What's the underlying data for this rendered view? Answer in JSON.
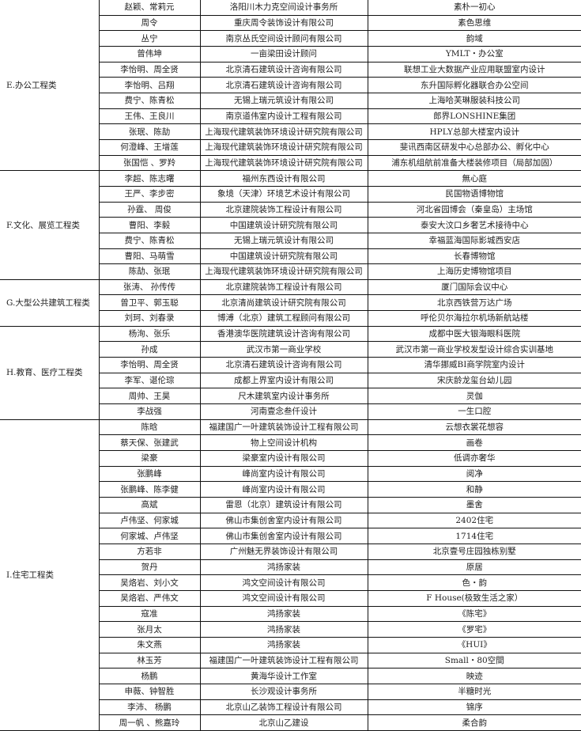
{
  "groups": [
    {
      "category": "E.办公工程类",
      "rows": [
        [
          "赵颖、常莉元",
          "洛阳川木力克空间设计事务所",
          "素朴一初心"
        ],
        [
          "周令",
          "重庆周令装饰设计有限公司",
          "素色思维"
        ],
        [
          "丛宁",
          "南京丛氏空间设计顾问有限公司",
          "韵域"
        ],
        [
          "曾伟坤",
          "一亩梁田设计顾问",
          "YMLT・办公室"
        ],
        [
          "李怡明、周全贤",
          "北京清石建筑设计咨询有限公司",
          "联想工业大数据产业应用联盟室内设计"
        ],
        [
          "李怡明、吕翔",
          "北京清石建筑设计咨询有限公司",
          "东升国际孵化器联合办公空间"
        ],
        [
          "费宁、陈青松",
          "无锡上瑞元筑设计有限公司",
          "上海哈芙琳服装科技公司"
        ],
        [
          "王伟、王良川",
          "南京道伟室内设计工程有限公司",
          "郎界LONSHINE集团"
        ],
        [
          "张珉、陈劼",
          "上海现代建筑装饰环境设计研究院有限公司",
          "HPLY总部大楼室内设计"
        ],
        [
          "何澄峰、王增莲",
          "上海现代建筑装饰环境设计研究院有限公司",
          "斐讯西南区研发中心总部办公、孵化中心"
        ],
        [
          "张国恺 、罗羚",
          "上海现代建筑装饰环境设计研究院有限公司",
          "浦东机组航前准备大楼装修项目（局部加固）"
        ]
      ]
    },
    {
      "category": "F.文化、展览工程类",
      "rows": [
        [
          "李超、陈志曙",
          "福州东西设计有限公司",
          "無心庭"
        ],
        [
          "王严、李步密",
          "象境（天津）环境艺术设计有限公司",
          "民国物语博物馆"
        ],
        [
          "孙霆、 周俊",
          "北京建院装饰工程设计有限公司",
          "河北省园博会（秦皇岛）主场馆"
        ],
        [
          "曹阳、李毅",
          "中国建筑设计研究院有限公司",
          "泰安大汶口乡奢艺术接待中心"
        ],
        [
          "费宁、陈青松",
          "无锡上瑞元筑设计有限公司",
          "幸福蓝海国际影城西安店"
        ],
        [
          "曹阳、马萌雪",
          "中国建筑设计研究院有限公司",
          "长春博物馆"
        ],
        [
          "陈劼、张珉",
          "上海现代建筑装饰环境设计研究院有限公司",
          "上海历史博物馆项目"
        ]
      ]
    },
    {
      "category": "G.大型公共建筑工程类",
      "rows": [
        [
          "张涛、 孙传传",
          "北京建院装饰工程设计有限公司",
          "厦门国际会议中心"
        ],
        [
          "曾卫平、郭玉聪",
          "北京清尚建筑设计研究院有限公司",
          "北京西铁营万达广场"
        ],
        [
          "刘珂、刘春录",
          "博溥（北京）建筑工程顾问有限公司",
          "呼伦贝尔海拉尔机场新航站楼"
        ]
      ]
    },
    {
      "category": "H.教育、医疗工程类",
      "rows": [
        [
          "杨洵、张乐",
          "香港澳华医院建筑设计咨询有限公司",
          "成都中医大银海眼科医院"
        ],
        [
          "孙成",
          "武汉市第一商业学校",
          "武汉市第一商业学校发型设计综合实训基地"
        ],
        [
          "李怡明、周全贤",
          "北京清石建筑设计咨询有限公司",
          "清华挪威BI商学院室内设计"
        ],
        [
          "李军、谌伦琮",
          "成都上界室内设计有限公司",
          "宋庆龄龙玺台幼儿园"
        ],
        [
          "周帅、王昊",
          "尺木建筑室内设计事务所",
          "灵伽"
        ],
        [
          "李战强",
          "河南壹念叁仟设计",
          "一生口腔"
        ]
      ]
    },
    {
      "category": "I.住宅工程类",
      "rows": [
        [
          "陈晗",
          "福建国广一叶建筑装饰设计工程有限公司",
          "云想衣裳花想容"
        ],
        [
          "蔡天保、张建武",
          "物上空间设计机构",
          "画卷"
        ],
        [
          "梁豪",
          "梁豪室内设计有限公司",
          "低调亦奢华"
        ],
        [
          "张鹏峰",
          "峰尚室内设计有限公司",
          "阅净"
        ],
        [
          "张鹏峰、陈李健",
          "峰尚室内设计有限公司",
          "和静"
        ],
        [
          "高斌",
          "雷恩（北京）建筑设计有限公司",
          "墨舍"
        ],
        [
          "卢伟坚、何家城",
          "佛山市集创舍室内设计有限公司",
          "2402住宅"
        ],
        [
          "何家城、卢伟坚",
          "佛山市集创舍室内设计有限公司",
          "1714住宅"
        ],
        [
          "方若非",
          "广州魅无界装饰设计有限公司",
          "北京壹号庄园独栋别墅"
        ],
        [
          "贺丹",
          "鸿扬家装",
          "原居"
        ],
        [
          "吴烙岩、刘小文",
          "鸿文空间设计有限公司",
          "色・韵"
        ],
        [
          "吴烙岩、严伟文",
          "鸿文空间设计有限公司",
          "F House(极致生活之家）"
        ],
        [
          "寇准",
          "鸿扬家装",
          "《陈宅》"
        ],
        [
          "张月太",
          "鸿扬家装",
          "《罗宅》"
        ],
        [
          "朱文燕",
          "鸿扬家装",
          "《HUI》"
        ],
        [
          "林玉芳",
          "福建国广一叶建筑装饰设计工程有限公司",
          "Small・80空間"
        ],
        [
          "杨鹏",
          "黄海华设计工作室",
          "映迹"
        ],
        [
          "申薇、钟智胜",
          "长沙观设计事务所",
          "半糖时光"
        ],
        [
          "李沛、 杨鹏",
          "北京山乙装饰工程设计有限公司",
          "锦序"
        ],
        [
          "周一帆 、熊嘉玲",
          "北京山乙建设",
          "柔合韵"
        ]
      ]
    }
  ]
}
